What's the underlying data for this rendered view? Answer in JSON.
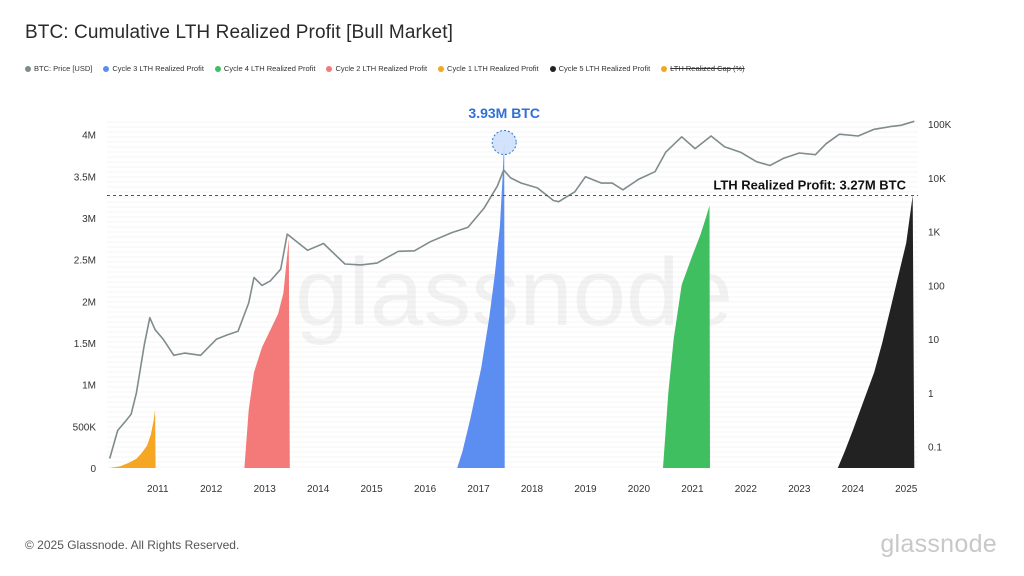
{
  "title": "BTC: Cumulative LTH Realized Profit [Bull Market]",
  "legend": [
    {
      "label": "BTC: Price [USD]",
      "color": "#7f8c8d",
      "strike": false
    },
    {
      "label": "Cycle 3 LTH Realized Profit",
      "color": "#5b8ef0",
      "strike": false
    },
    {
      "label": "Cycle 4 LTH Realized Profit",
      "color": "#3fbf5f",
      "strike": false
    },
    {
      "label": "Cycle 2 LTH Realized Profit",
      "color": "#f47a7a",
      "strike": false
    },
    {
      "label": "Cycle 1 LTH Realized Profit",
      "color": "#f5a623",
      "strike": false
    },
    {
      "label": "Cycle 5 LTH Realized Profit",
      "color": "#222222",
      "strike": false
    },
    {
      "label": "LTH Realized Cap (%)",
      "color": "#f5a623",
      "strike": true
    }
  ],
  "footer": "© 2025 Glassnode. All Rights Reserved.",
  "brand": "glassnode",
  "watermark": "glassnode",
  "chart_data": {
    "type": "area",
    "x_ticks": [
      "2011",
      "2012",
      "2013",
      "2014",
      "2015",
      "2016",
      "2017",
      "2018",
      "2019",
      "2020",
      "2021",
      "2022",
      "2023",
      "2024",
      "2025"
    ],
    "y_left_ticks": [
      "0",
      "500K",
      "1M",
      "1.5M",
      "2M",
      "2.5M",
      "3M",
      "3.5M",
      "4M"
    ],
    "y_left_range": [
      0,
      4200000
    ],
    "y_right_ticks": [
      "0.1",
      "1",
      "10",
      "100",
      "1K",
      "10K",
      "100K"
    ],
    "y_right_scale": "log",
    "y_right_range": [
      0.04,
      130000
    ],
    "x_range": [
      2010.55,
      2025.72
    ],
    "grid": true,
    "annotations": [
      {
        "text": "3.93M BTC",
        "color": "#2f6fd6"
      },
      {
        "text": "LTH Realized Profit: 3.27M BTC",
        "color": "#111111"
      }
    ],
    "reference_line": {
      "y": 3270000,
      "style": "dashed"
    },
    "price_series": {
      "name": "BTC: Price [USD]",
      "axis": "right",
      "x": [
        2010.6,
        2010.75,
        2010.9,
        2011.0,
        2011.1,
        2011.25,
        2011.35,
        2011.45,
        2011.6,
        2011.8,
        2012.0,
        2012.3,
        2012.6,
        2012.8,
        2013.0,
        2013.2,
        2013.3,
        2013.45,
        2013.6,
        2013.8,
        2013.92,
        2014.1,
        2014.3,
        2014.6,
        2015.0,
        2015.3,
        2015.6,
        2016.0,
        2016.3,
        2016.6,
        2017.0,
        2017.3,
        2017.6,
        2017.85,
        2017.97,
        2018.1,
        2018.3,
        2018.6,
        2018.9,
        2019.0,
        2019.3,
        2019.5,
        2019.8,
        2020.0,
        2020.2,
        2020.5,
        2020.8,
        2021.0,
        2021.3,
        2021.55,
        2021.85,
        2022.1,
        2022.4,
        2022.7,
        2022.95,
        2023.2,
        2023.5,
        2023.8,
        2024.0,
        2024.25,
        2024.6,
        2024.9,
        2025.2,
        2025.4,
        2025.65
      ],
      "y": [
        0.06,
        0.2,
        0.3,
        0.4,
        1,
        8,
        25,
        15,
        10,
        5,
        5.5,
        5,
        10,
        12,
        14,
        47,
        140,
        100,
        120,
        200,
        900,
        650,
        450,
        600,
        250,
        240,
        260,
        430,
        440,
        650,
        960,
        1200,
        2700,
        7000,
        14000,
        10000,
        8000,
        6500,
        3800,
        3600,
        5500,
        10500,
        8000,
        8000,
        6000,
        9500,
        13000,
        30000,
        58000,
        35000,
        60000,
        38000,
        30000,
        20000,
        17000,
        23000,
        29000,
        27000,
        43000,
        65000,
        60000,
        80000,
        90000,
        95000,
        113000
      ]
    },
    "series": [
      {
        "name": "Cycle 1 LTH Realized Profit",
        "color": "#f5a623",
        "x": [
          2010.6,
          2010.8,
          2010.95,
          2011.1,
          2011.2,
          2011.3,
          2011.37,
          2011.42,
          2011.45,
          2011.46
        ],
        "y": [
          0,
          20000,
          60000,
          110000,
          180000,
          270000,
          400000,
          560000,
          700000,
          0
        ]
      },
      {
        "name": "Cycle 2 LTH Realized Profit",
        "color": "#f47a7a",
        "x": [
          2013.12,
          2013.2,
          2013.3,
          2013.45,
          2013.6,
          2013.75,
          2013.85,
          2013.95,
          2013.97
        ],
        "y": [
          0,
          700000,
          1150000,
          1450000,
          1650000,
          1850000,
          2100000,
          2750000,
          0
        ]
      },
      {
        "name": "Cycle 3 LTH Realized Profit",
        "color": "#5b8ef0",
        "x": [
          2017.1,
          2017.2,
          2017.35,
          2017.55,
          2017.7,
          2017.8,
          2017.9,
          2017.95,
          2017.98,
          2017.99
        ],
        "y": [
          0,
          200000,
          600000,
          1200000,
          1800000,
          2300000,
          2900000,
          3500000,
          3930000,
          0
        ]
      },
      {
        "name": "Cycle 4 LTH Realized Profit",
        "color": "#3fbf5f",
        "x": [
          2020.95,
          2021.05,
          2021.15,
          2021.3,
          2021.5,
          2021.65,
          2021.75,
          2021.82,
          2021.83
        ],
        "y": [
          0,
          900000,
          1550000,
          2200000,
          2550000,
          2800000,
          3000000,
          3150000,
          0
        ]
      },
      {
        "name": "Cycle 5 LTH Realized Profit",
        "color": "#222222",
        "x": [
          2024.22,
          2024.35,
          2024.5,
          2024.7,
          2024.9,
          2025.05,
          2025.2,
          2025.35,
          2025.5,
          2025.62,
          2025.65
        ],
        "y": [
          0,
          200000,
          450000,
          800000,
          1150000,
          1500000,
          1900000,
          2300000,
          2700000,
          3270000,
          0
        ]
      }
    ]
  }
}
